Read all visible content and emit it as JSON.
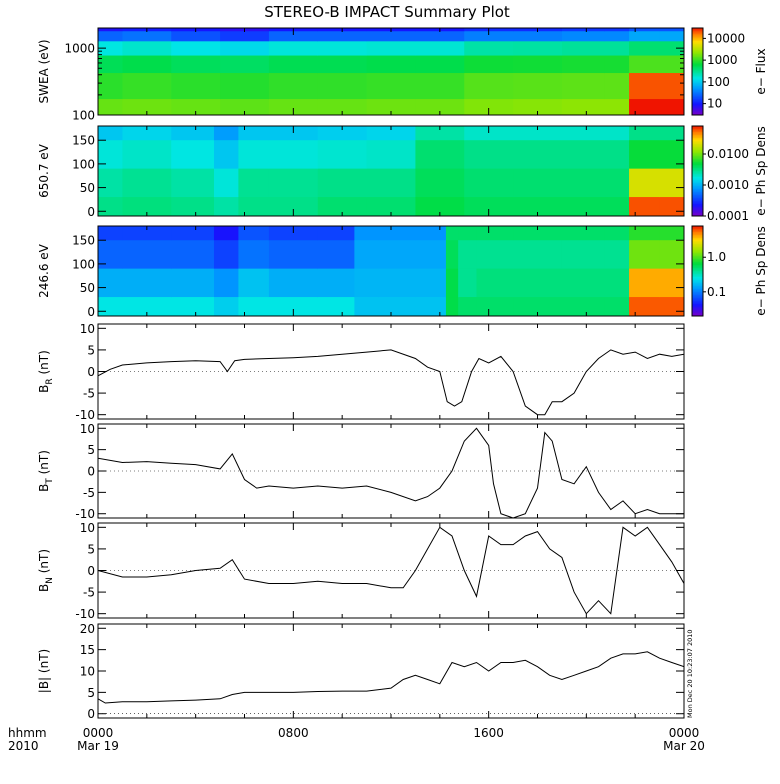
{
  "title": "STEREO-B IMPACT Summary Plot",
  "timestamp_label": "Mon Dec 20 10:23:07 2010",
  "bottom_axis": {
    "left_labels": [
      "hhmm",
      "2010"
    ],
    "ticks": [
      {
        "hour": 0,
        "label": "0000",
        "date": "Mar 19"
      },
      {
        "hour": 8,
        "label": "0800",
        "date": ""
      },
      {
        "hour": 16,
        "label": "1600",
        "date": ""
      },
      {
        "hour": 24,
        "label": "0000",
        "date": "Mar 20"
      }
    ]
  },
  "chart_data": [
    {
      "type": "heatmap",
      "ylabel": "SWEA (eV)",
      "yscale": "log",
      "ylim": [
        100,
        2000
      ],
      "yticks": [
        {
          "value": 1000,
          "label": "1000"
        },
        {
          "value": 100,
          "label": "100"
        }
      ],
      "colorbar": {
        "label": "e−  Flux",
        "scale": "log",
        "ticks": [
          "10000",
          "1000",
          "100",
          "10"
        ],
        "tick_values": [
          10000,
          1000,
          100,
          10
        ],
        "range": [
          3,
          30000
        ]
      },
      "x_hours": [
        0,
        2,
        4,
        6,
        8,
        10,
        12,
        14,
        16,
        18,
        20,
        21.5,
        22,
        24
      ],
      "y_values": [
        2000,
        1600,
        1000,
        600,
        300,
        100
      ],
      "z": [
        [
          8,
          10,
          9,
          7,
          9,
          9,
          9,
          9,
          12,
          12,
          14,
          14,
          20,
          20
        ],
        [
          25,
          30,
          20,
          15,
          25,
          25,
          25,
          25,
          35,
          35,
          40,
          40,
          60,
          60
        ],
        [
          150,
          180,
          140,
          120,
          160,
          160,
          170,
          170,
          250,
          260,
          280,
          280,
          400,
          400
        ],
        [
          500,
          550,
          480,
          450,
          520,
          520,
          550,
          550,
          700,
          720,
          760,
          760,
          1200,
          1200
        ],
        [
          900,
          1000,
          900,
          850,
          950,
          950,
          1000,
          1000,
          1300,
          1350,
          1400,
          1400,
          20000,
          20000
        ],
        [
          1500,
          1600,
          1500,
          1400,
          1500,
          1500,
          1600,
          1600,
          1900,
          2000,
          2100,
          2100,
          30000,
          30000
        ]
      ]
    },
    {
      "type": "heatmap",
      "ylabel": "650.7 eV",
      "ylim": [
        -10,
        180
      ],
      "yticks": [
        {
          "value": 150,
          "label": "150"
        },
        {
          "value": 100,
          "label": "100"
        },
        {
          "value": 50,
          "label": "50"
        },
        {
          "value": 0,
          "label": "0"
        }
      ],
      "colorbar": {
        "label": "e−  Ph Sp Dens",
        "scale": "log",
        "ticks": [
          "0.0100",
          "0.0010",
          "0.0001"
        ],
        "tick_values": [
          0.01,
          0.001,
          0.0001
        ],
        "range": [
          0.0001,
          0.08
        ]
      },
      "x_hours": [
        0,
        2,
        4,
        5.5,
        6,
        8,
        10,
        12,
        14,
        16,
        18,
        20,
        21.5,
        22,
        24
      ],
      "y_values": [
        180,
        120,
        60,
        0
      ],
      "z": [
        [
          0.0012,
          0.0014,
          0.0012,
          0.0008,
          0.0012,
          0.0012,
          0.0013,
          0.0014,
          0.0025,
          0.002,
          0.002,
          0.002,
          0.002,
          0.003,
          0.003
        ],
        [
          0.0018,
          0.002,
          0.0017,
          0.0012,
          0.0018,
          0.0018,
          0.0019,
          0.002,
          0.0035,
          0.003,
          0.003,
          0.003,
          0.003,
          0.005,
          0.005
        ],
        [
          0.0025,
          0.0028,
          0.0025,
          0.0018,
          0.0028,
          0.0028,
          0.003,
          0.003,
          0.004,
          0.0035,
          0.0035,
          0.0035,
          0.0035,
          0.02,
          0.02
        ],
        [
          0.003,
          0.0032,
          0.003,
          0.0025,
          0.003,
          0.003,
          0.0035,
          0.0035,
          0.0045,
          0.004,
          0.004,
          0.004,
          0.004,
          0.06,
          0.06
        ]
      ]
    },
    {
      "type": "heatmap",
      "ylabel": "246.6 eV",
      "ylim": [
        -10,
        180
      ],
      "yticks": [
        {
          "value": 150,
          "label": "150"
        },
        {
          "value": 100,
          "label": "100"
        },
        {
          "value": 50,
          "label": "50"
        },
        {
          "value": 0,
          "label": "0"
        }
      ],
      "colorbar": {
        "label": "e−  Ph Sp Dens",
        "scale": "log",
        "ticks": [
          "1.0",
          "0.1"
        ],
        "tick_values": [
          1.0,
          0.1
        ],
        "range": [
          0.02,
          8
        ]
      },
      "x_hours": [
        0,
        2,
        4,
        5.5,
        6,
        8,
        10,
        11,
        12,
        14,
        14.5,
        15,
        16,
        18,
        20,
        21.5,
        22,
        24
      ],
      "y_values": [
        180,
        120,
        60,
        0
      ],
      "z": [
        [
          0.06,
          0.06,
          0.06,
          0.04,
          0.07,
          0.06,
          0.06,
          0.12,
          0.12,
          0.12,
          0.5,
          0.5,
          0.5,
          0.5,
          0.5,
          0.5,
          0.8,
          0.8
        ],
        [
          0.08,
          0.08,
          0.08,
          0.06,
          0.09,
          0.08,
          0.08,
          0.14,
          0.14,
          0.14,
          0.55,
          0.4,
          0.4,
          0.4,
          0.4,
          0.4,
          1.2,
          1.2
        ],
        [
          0.15,
          0.15,
          0.15,
          0.12,
          0.18,
          0.15,
          0.15,
          0.16,
          0.16,
          0.16,
          0.6,
          0.4,
          0.45,
          0.45,
          0.45,
          0.45,
          4,
          4
        ],
        [
          0.25,
          0.25,
          0.25,
          0.2,
          0.25,
          0.25,
          0.25,
          0.18,
          0.18,
          0.18,
          0.6,
          0.5,
          0.5,
          0.5,
          0.5,
          0.5,
          6,
          6
        ]
      ]
    },
    {
      "type": "line",
      "ylabel": "B",
      "ylabel_sub": "R",
      "ylabel_unit": "(nT)",
      "ylim": [
        -11,
        11
      ],
      "yticks": [
        {
          "value": 10,
          "label": "10"
        },
        {
          "value": 5,
          "label": "5"
        },
        {
          "value": 0,
          "label": "0"
        },
        {
          "value": -5,
          "label": "-5"
        },
        {
          "value": -10,
          "label": "-10"
        }
      ],
      "x": [
        0,
        0.5,
        1,
        2,
        3,
        4,
        5,
        5.3,
        5.6,
        6,
        7,
        8,
        9,
        10,
        11,
        12,
        13,
        13.5,
        14,
        14.3,
        14.6,
        14.9,
        15.3,
        15.6,
        16,
        16.5,
        17,
        17.5,
        18,
        18.3,
        18.6,
        19,
        19.5,
        20,
        20.5,
        21,
        21.5,
        22,
        22.5,
        23,
        23.5,
        24
      ],
      "y": [
        -1,
        0.5,
        1.5,
        2,
        2.3,
        2.5,
        2.3,
        0,
        2.5,
        2.8,
        3,
        3.2,
        3.5,
        4,
        4.5,
        5,
        3,
        1,
        0,
        -7,
        -8,
        -7,
        0,
        3,
        2,
        3.5,
        0,
        -8,
        -10,
        -10,
        -7,
        -7,
        -5,
        0,
        3,
        5,
        4,
        4.5,
        3,
        4,
        3.5,
        4
      ]
    },
    {
      "type": "line",
      "ylabel": "B",
      "ylabel_sub": "T",
      "ylabel_unit": "(nT)",
      "ylim": [
        -11,
        11
      ],
      "yticks": [
        {
          "value": 10,
          "label": "10"
        },
        {
          "value": 5,
          "label": "5"
        },
        {
          "value": 0,
          "label": "0"
        },
        {
          "value": -5,
          "label": "-5"
        },
        {
          "value": -10,
          "label": "-10"
        }
      ],
      "x": [
        0,
        1,
        2,
        3,
        4,
        5,
        5.5,
        6,
        6.5,
        7,
        8,
        9,
        10,
        11,
        12,
        13,
        13.5,
        14,
        14.5,
        15,
        15.5,
        16,
        16.2,
        16.5,
        17,
        17.5,
        18,
        18.3,
        18.6,
        19,
        19.5,
        20,
        20.5,
        21,
        21.5,
        22,
        22.5,
        23,
        23.5,
        24
      ],
      "y": [
        3,
        2,
        2.2,
        1.8,
        1.5,
        0.5,
        4,
        -2,
        -4,
        -3.5,
        -4,
        -3.5,
        -4,
        -3.5,
        -5,
        -7,
        -6,
        -4,
        0,
        7,
        10,
        6,
        -3,
        -10,
        -11,
        -10,
        -4,
        9,
        7,
        -2,
        -3,
        1,
        -5,
        -9,
        -7,
        -10,
        -9,
        -10,
        -10,
        -10
      ]
    },
    {
      "type": "line",
      "ylabel": "B",
      "ylabel_sub": "N",
      "ylabel_unit": "(nT)",
      "ylim": [
        -11,
        11
      ],
      "yticks": [
        {
          "value": 10,
          "label": "10"
        },
        {
          "value": 5,
          "label": "5"
        },
        {
          "value": 0,
          "label": "0"
        },
        {
          "value": -5,
          "label": "-5"
        },
        {
          "value": -10,
          "label": "-10"
        }
      ],
      "x": [
        0,
        1,
        2,
        3,
        4,
        5,
        5.5,
        6,
        7,
        8,
        9,
        10,
        11,
        12,
        12.5,
        13,
        13.5,
        14,
        14.5,
        15,
        15.5,
        16,
        16.5,
        17,
        17.5,
        18,
        18.5,
        19,
        19.5,
        20,
        20.5,
        21,
        21.5,
        22,
        22.5,
        23,
        23.5,
        24
      ],
      "y": [
        0,
        -1.5,
        -1.5,
        -1,
        0,
        0.5,
        2.5,
        -2,
        -3,
        -3,
        -2.5,
        -3,
        -3,
        -4,
        -4,
        0,
        5,
        10,
        8,
        0,
        -6,
        8,
        6,
        6,
        8,
        9,
        5,
        3,
        -5,
        -10,
        -7,
        -10,
        10,
        8,
        10,
        6,
        2,
        -3
      ]
    },
    {
      "type": "line",
      "ylabel": "|B|",
      "ylabel_unit": "(nT)",
      "ylim": [
        -1,
        21
      ],
      "yticks": [
        {
          "value": 20,
          "label": "20"
        },
        {
          "value": 15,
          "label": "15"
        },
        {
          "value": 10,
          "label": "10"
        },
        {
          "value": 5,
          "label": "5"
        },
        {
          "value": 0,
          "label": "0"
        }
      ],
      "x": [
        0,
        0.3,
        1,
        2,
        3,
        4,
        5,
        5.5,
        6,
        7,
        8,
        9,
        10,
        11,
        12,
        12.5,
        13,
        13.5,
        14,
        14.5,
        15,
        15.5,
        16,
        16.5,
        17,
        17.5,
        18,
        18.5,
        19,
        19.5,
        20,
        20.5,
        21,
        21.5,
        22,
        22.5,
        23,
        23.5,
        24
      ],
      "y": [
        3.5,
        2.5,
        2.8,
        2.8,
        3,
        3.2,
        3.5,
        4.5,
        5,
        5,
        5,
        5.2,
        5.3,
        5.3,
        6,
        8,
        9,
        8,
        7,
        12,
        11,
        12,
        10,
        12,
        12,
        12.5,
        11,
        9,
        8,
        9,
        10,
        11,
        13,
        14,
        14,
        14.5,
        13,
        12,
        11
      ]
    }
  ]
}
